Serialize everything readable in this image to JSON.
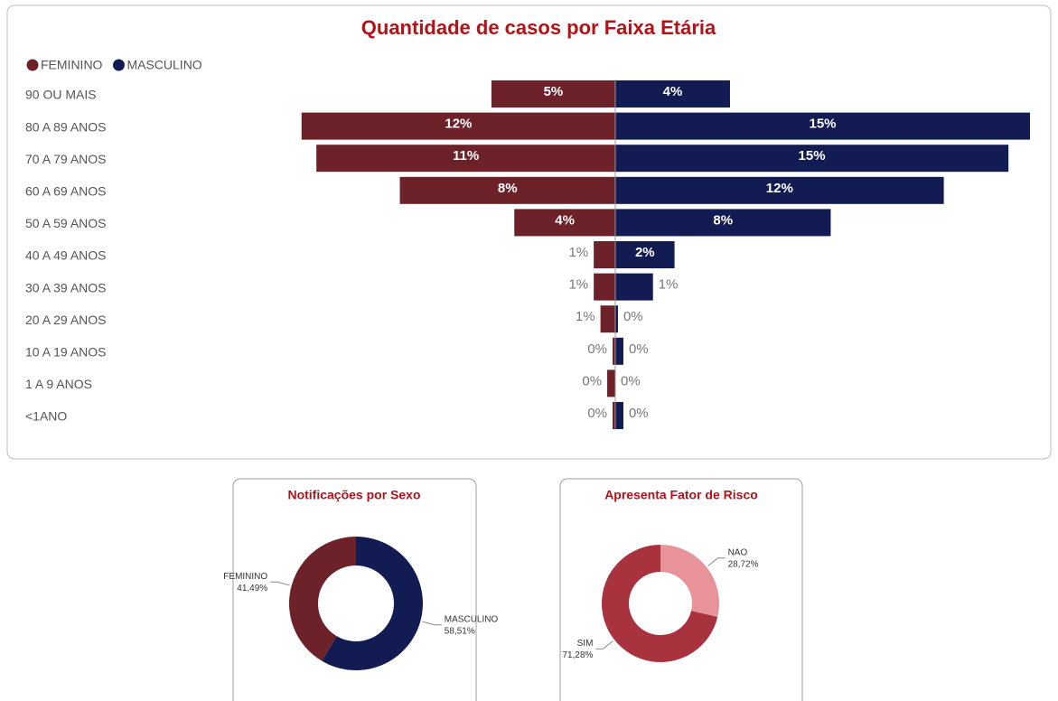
{
  "chart_data": [
    {
      "type": "butterfly",
      "title": "Quantidade de casos por Faixa Etária",
      "categories": [
        "90 OU MAIS",
        "80 A 89 ANOS",
        "70 A 79 ANOS",
        "60 A 69 ANOS",
        "50 A 59 ANOS",
        "40 A 49 ANOS",
        "30 A 39 ANOS",
        "20 A 29 ANOS",
        "10 A 19 ANOS",
        "1 A 9 ANOS",
        "<1ANO"
      ],
      "series": [
        {
          "name": "FEMININO",
          "color": "#6d2128",
          "values": [
            4.6,
            11.65,
            11.1,
            8.0,
            3.75,
            0.8,
            0.8,
            0.55,
            0.1,
            0.3,
            0.1
          ],
          "value_labels": [
            "5%",
            "12%",
            "11%",
            "8%",
            "4%",
            "1%",
            "1%",
            "1%",
            "0%",
            "0%",
            "0%"
          ]
        },
        {
          "name": "MASCULINO",
          "color": "#121c52",
          "values": [
            4.26,
            15.4,
            14.6,
            12.2,
            8.0,
            2.2,
            1.4,
            0.1,
            0.3,
            0.0,
            0.3
          ],
          "value_labels": [
            "4%",
            "15%",
            "15%",
            "12%",
            "8%",
            "2%",
            "1%",
            "0%",
            "0%",
            "0%",
            "0%"
          ]
        }
      ],
      "legend": "top-left"
    },
    {
      "type": "donut",
      "title": "Notificações por Sexo",
      "categories": [
        "MASCULINO",
        "FEMININO"
      ],
      "values": [
        58.51,
        41.49
      ],
      "value_labels": [
        "58,51%",
        "41,49%"
      ],
      "colors": [
        "#121c52",
        "#6d2128"
      ]
    },
    {
      "type": "donut",
      "title": "Apresenta Fator de Risco",
      "categories": [
        "NAO",
        "SIM"
      ],
      "values": [
        28.72,
        71.28
      ],
      "value_labels": [
        "28,72%",
        "71,28%"
      ],
      "colors": [
        "#e8939a",
        "#a8323e"
      ]
    }
  ]
}
